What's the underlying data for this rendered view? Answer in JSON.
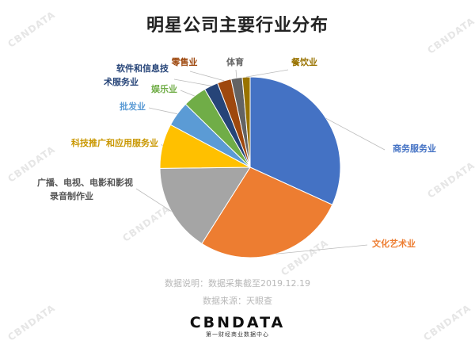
{
  "title": "明星公司主要行业分布",
  "watermark": "CBNDATA",
  "note": {
    "line1": "数据说明：数据采集截至2019.12.19",
    "line2": "数据来源：天眼查"
  },
  "brand": {
    "name": "CBNDATA",
    "subtitle": "第一财经商业数据中心"
  },
  "chart_data": {
    "type": "pie",
    "legend": "none",
    "slices": [
      {
        "label": "商务服务业",
        "value": 31.8,
        "color": "#4472c4"
      },
      {
        "label": "文化艺术业",
        "value": 27.2,
        "color": "#ed7d31"
      },
      {
        "label": "广播、电视、电影和影视录音制作业",
        "value": 15.8,
        "color": "#a5a5a5"
      },
      {
        "label": "科技推广和应用服务业",
        "value": 8.0,
        "color": "#ffc000"
      },
      {
        "label": "批发业",
        "value": 4.5,
        "color": "#5b9bd5"
      },
      {
        "label": "娱乐业",
        "value": 4.3,
        "color": "#70ad47"
      },
      {
        "label": "软件和信息技术服务业",
        "value": 2.5,
        "color": "#264478"
      },
      {
        "label": "零售业",
        "value": 2.5,
        "color": "#9e480e"
      },
      {
        "label": "体育",
        "value": 2.0,
        "color": "#636363"
      },
      {
        "label": "餐饮业",
        "value": 1.4,
        "color": "#997300"
      }
    ]
  }
}
